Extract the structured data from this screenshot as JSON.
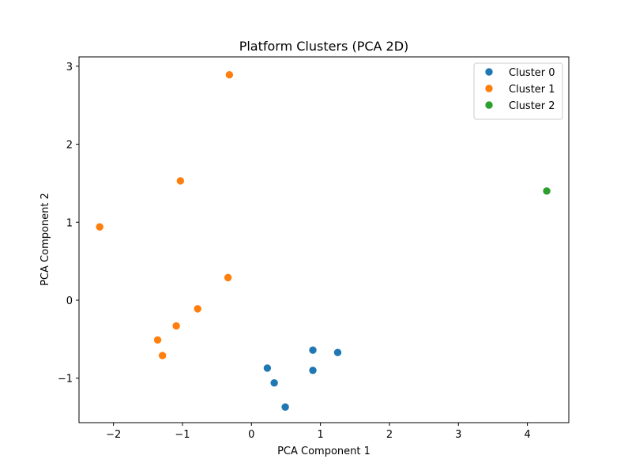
{
  "chart_data": {
    "type": "scatter",
    "title": "Platform Clusters (PCA 2D)",
    "xlabel": "PCA Component 1",
    "ylabel": "PCA Component 2",
    "xlim": [
      -2.5,
      4.6
    ],
    "ylim": [
      -1.57,
      3.12
    ],
    "xticks": [
      -2,
      -1,
      0,
      1,
      2,
      3,
      4
    ],
    "yticks": [
      -1,
      0,
      1,
      2,
      3
    ],
    "grid": false,
    "legend_position": "top-right",
    "series": [
      {
        "name": "Cluster 0",
        "color": "#1f77b4",
        "points": [
          {
            "x": 0.23,
            "y": -0.87
          },
          {
            "x": 0.33,
            "y": -1.06
          },
          {
            "x": 0.49,
            "y": -1.37
          },
          {
            "x": 0.89,
            "y": -0.64
          },
          {
            "x": 0.89,
            "y": -0.9
          },
          {
            "x": 1.25,
            "y": -0.67
          }
        ]
      },
      {
        "name": "Cluster 1",
        "color": "#ff7f0e",
        "points": [
          {
            "x": -0.32,
            "y": 2.89
          },
          {
            "x": -1.03,
            "y": 1.53
          },
          {
            "x": -2.2,
            "y": 0.94
          },
          {
            "x": -0.34,
            "y": 0.29
          },
          {
            "x": -0.78,
            "y": -0.11
          },
          {
            "x": -1.09,
            "y": -0.33
          },
          {
            "x": -1.36,
            "y": -0.51
          },
          {
            "x": -1.29,
            "y": -0.71
          }
        ]
      },
      {
        "name": "Cluster 2",
        "color": "#2ca02c",
        "points": [
          {
            "x": 4.28,
            "y": 1.4
          }
        ]
      }
    ]
  }
}
